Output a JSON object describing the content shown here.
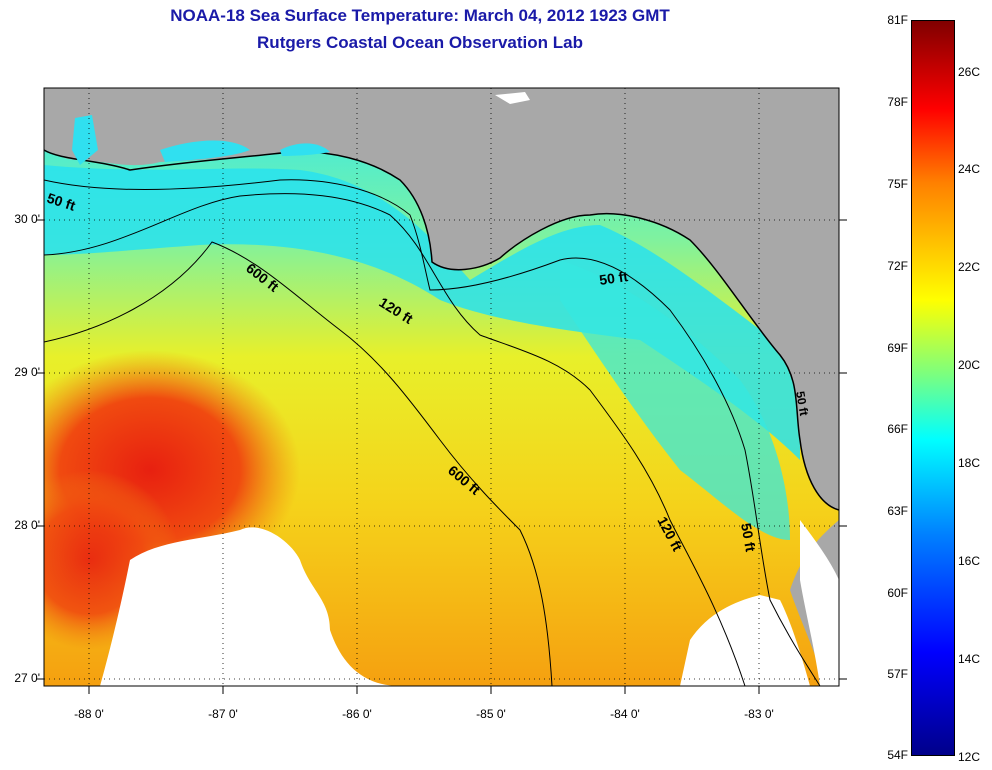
{
  "title_line1": "NOAA-18 Sea Surface Temperature:  March 04, 2012 1923 GMT",
  "title_line2": "Rutgers Coastal Ocean Observation Lab",
  "map": {
    "lat_labels": [
      "30 0'",
      "29 0'",
      "28 0'",
      "27 0'"
    ],
    "lon_labels": [
      "-88 0'",
      "-87 0'",
      "-86 0'",
      "-85 0'",
      "-84 0'",
      "-83 0'"
    ],
    "contour_labels": [
      "50 ft",
      "600 ft",
      "120 ft",
      "50 ft",
      "600 ft",
      "120 ft",
      "50 ft",
      "50 ft"
    ],
    "colors": {
      "land": "#a8a8a8",
      "cloud": "#ffffff",
      "contour": "#000000"
    }
  },
  "colorbar": {
    "fahrenheit": [
      "81F",
      "78F",
      "75F",
      "72F",
      "69F",
      "66F",
      "63F",
      "60F",
      "57F",
      "54F"
    ],
    "celsius": [
      "26C",
      "24C",
      "22C",
      "20C",
      "18C",
      "16C",
      "14C",
      "12C"
    ]
  }
}
